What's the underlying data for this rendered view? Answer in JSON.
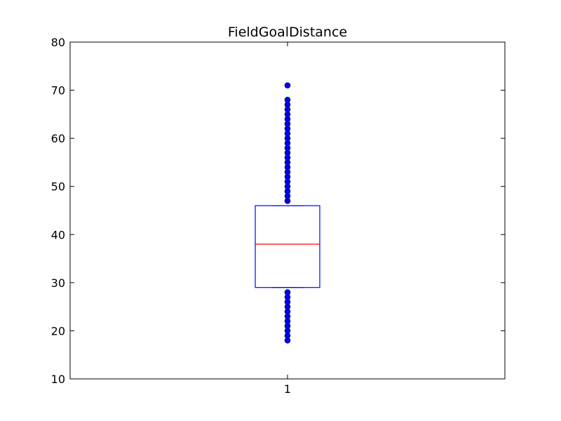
{
  "chart_data": {
    "type": "box",
    "title": "FieldGoalDistance",
    "xlabel": "",
    "ylabel": "",
    "categories": [
      "1"
    ],
    "ylim": [
      10,
      80
    ],
    "yticks": [
      10,
      20,
      30,
      40,
      50,
      60,
      70,
      80
    ],
    "grid": false,
    "boxes": [
      {
        "category": "1",
        "q1": 29,
        "median": 38,
        "q3": 46,
        "whisker_low": 29,
        "whisker_high": 46,
        "outliers": [
          18,
          19,
          20,
          21,
          22,
          23,
          24,
          25,
          26,
          27,
          28,
          47,
          48,
          49,
          50,
          51,
          52,
          53,
          54,
          55,
          56,
          57,
          58,
          59,
          60,
          61,
          62,
          63,
          64,
          65,
          66,
          67,
          68,
          71
        ]
      }
    ],
    "colors": {
      "box": "#0000ff",
      "median": "#ff0000",
      "whisker": "#000000",
      "outlier_fill": "#0000ff"
    }
  }
}
